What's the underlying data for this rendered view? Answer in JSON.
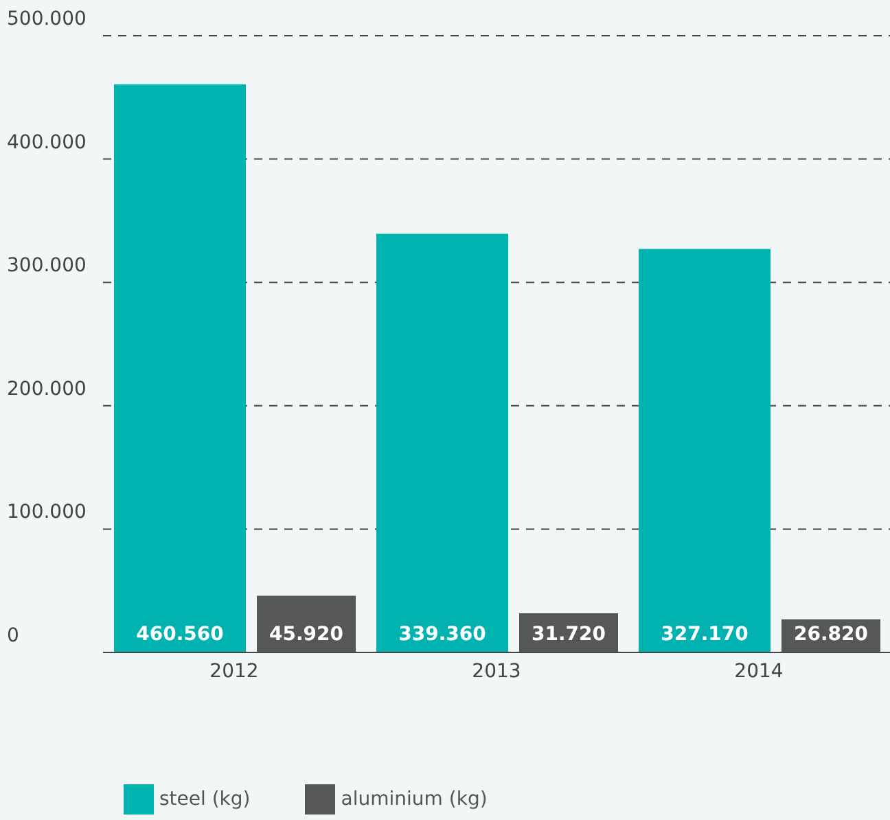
{
  "chart_data": {
    "type": "bar",
    "categories": [
      "2012",
      "2013",
      "2014"
    ],
    "series": [
      {
        "name": "steel (kg)",
        "color": "#00b2b0",
        "values": [
          460560,
          339360,
          327170
        ],
        "value_labels": [
          "460.560",
          "339.360",
          "327.170"
        ]
      },
      {
        "name": "aluminium (kg)",
        "color": "#555759",
        "values": [
          45920,
          31720,
          26820
        ],
        "value_labels": [
          "45.920",
          "31.720",
          "26.820"
        ]
      }
    ],
    "ylim": [
      0,
      500000
    ],
    "yticks": [
      {
        "value": 0,
        "label": "0"
      },
      {
        "value": 100000,
        "label": "100.000"
      },
      {
        "value": 200000,
        "label": "200.000"
      },
      {
        "value": 300000,
        "label": "300.000"
      },
      {
        "value": 400000,
        "label": "400.000"
      },
      {
        "value": 500000,
        "label": "500.000"
      }
    ],
    "grid": "y",
    "legend": "bottom left"
  }
}
